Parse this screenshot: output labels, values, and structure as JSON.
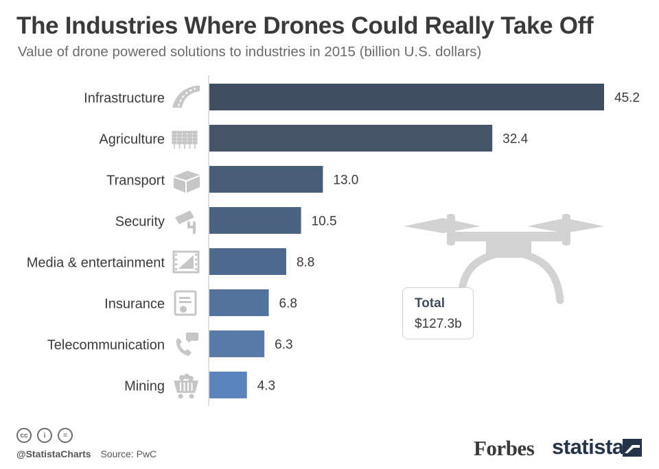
{
  "title": "The Industries Where Drones Could Really Take Off",
  "subtitle": "Value of drone powered solutions to industries in 2015 (billion U.S. dollars)",
  "chart_data": {
    "type": "bar",
    "orientation": "horizontal",
    "categories": [
      "Infrastructure",
      "Agriculture",
      "Transport",
      "Security",
      "Media & entertainment",
      "Insurance",
      "Telecommunication",
      "Mining"
    ],
    "values": [
      45.2,
      32.4,
      13.0,
      10.5,
      8.8,
      6.8,
      6.3,
      4.3
    ],
    "value_labels": [
      "45.2",
      "32.4",
      "13.0",
      "10.5",
      "8.8",
      "6.8",
      "6.3",
      "4.3"
    ],
    "icons": [
      "road-icon",
      "wheat-icon",
      "box-icon",
      "security-camera-icon",
      "film-icon",
      "document-icon",
      "phone-icon",
      "mining-cart-icon"
    ],
    "bar_colors": [
      "#3f4e60",
      "#445569",
      "#475c76",
      "#4b6383",
      "#4e6a8f",
      "#54729e",
      "#577aa9",
      "#5b84bd"
    ],
    "xlim": [
      0,
      46
    ],
    "grid": false,
    "legend": "none"
  },
  "total": {
    "title": "Total",
    "value": "$127.3b"
  },
  "footer": {
    "handle": "@StatistaCharts",
    "source": "Source: PwC",
    "cc_labels": [
      "cc",
      "i",
      "="
    ]
  },
  "brands": {
    "forbes": "Forbes",
    "statista": "statista"
  }
}
